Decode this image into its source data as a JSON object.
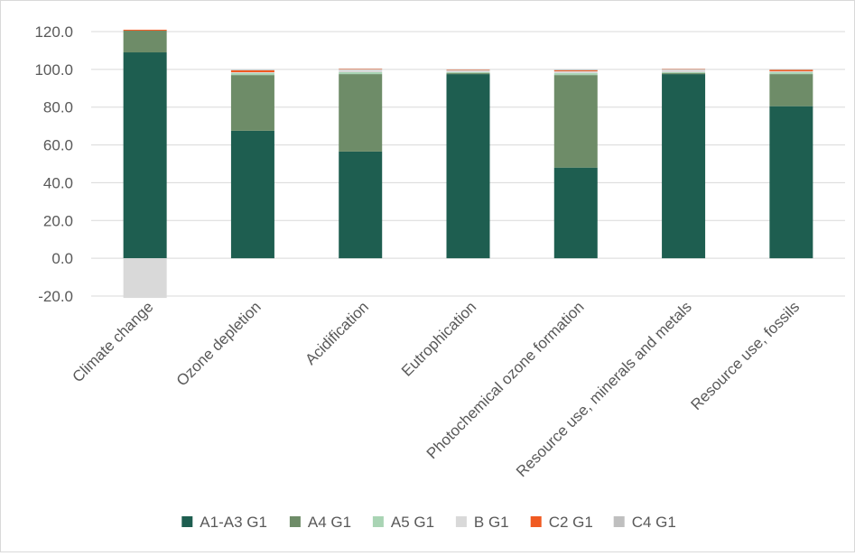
{
  "chart_data": {
    "type": "bar",
    "stacked": true,
    "categories": [
      "Climate change",
      "Ozone depletion",
      "Acidification",
      "Eutrophication",
      "Photochemical ozone formation",
      "Resource use, minerals and metals",
      "Resource use, fossils"
    ],
    "series": [
      {
        "name": "A1-A3 G1",
        "color": "#1e5e50",
        "values": [
          109.0,
          67.5,
          56.5,
          97.5,
          48.0,
          97.5,
          80.5
        ]
      },
      {
        "name": "A4 G1",
        "color": "#6e8c68",
        "values": [
          11.5,
          29.5,
          41.0,
          0.5,
          49.0,
          0.5,
          17.0
        ]
      },
      {
        "name": "A5 G1",
        "color": "#a9d4b4",
        "values": [
          0.0,
          1.0,
          1.0,
          0.5,
          1.0,
          0.5,
          1.0
        ]
      },
      {
        "name": "B G1",
        "color": "#d9d9d9",
        "values": [
          -21.0,
          0.5,
          1.5,
          1.0,
          1.0,
          1.5,
          0.5
        ]
      },
      {
        "name": "C2 G1",
        "color": "#f05a22",
        "values": [
          0.5,
          1.0,
          0.3,
          0.3,
          0.5,
          0.2,
          0.8
        ]
      },
      {
        "name": "C4 G1",
        "color": "#bfbfbf",
        "values": [
          0.0,
          0.3,
          0.2,
          0.2,
          0.5,
          0.2,
          0.2
        ]
      }
    ],
    "ylim": [
      -20.0,
      120.0
    ],
    "yticks": [
      "120.0",
      "100.0",
      "80.0",
      "60.0",
      "40.0",
      "20.0",
      "0.0",
      "-20.0"
    ],
    "ytick_values": [
      120,
      100,
      80,
      60,
      40,
      20,
      0,
      -20
    ],
    "grid": true,
    "legend_position": "bottom"
  }
}
